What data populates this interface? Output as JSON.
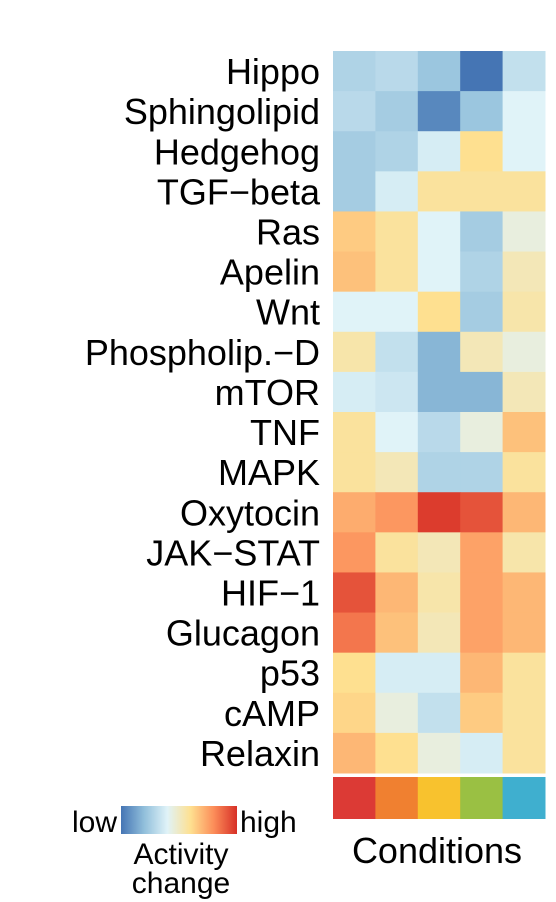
{
  "chart_data": {
    "type": "heatmap",
    "title": "",
    "rows": [
      "Hippo",
      "Sphingolipid",
      "Hedgehog",
      "TGF−beta",
      "Ras",
      "Apelin",
      "Wnt",
      "Phospholip.−D",
      "mTOR",
      "TNF",
      "MAPK",
      "Oxytocin",
      "JAK−STAT",
      "HIF−1",
      "Glucagon",
      "p53",
      "cAMP",
      "Relaxin"
    ],
    "columns_count": 5,
    "values": [
      [
        -0.45,
        -0.4,
        -0.55,
        -1.0,
        -0.35
      ],
      [
        -0.4,
        -0.5,
        -0.9,
        -0.55,
        -0.2
      ],
      [
        -0.5,
        -0.45,
        -0.25,
        0.2,
        -0.2
      ],
      [
        -0.5,
        -0.25,
        0.15,
        0.15,
        0.15
      ],
      [
        0.3,
        0.15,
        -0.2,
        -0.5,
        -0.1
      ],
      [
        0.35,
        0.15,
        -0.2,
        -0.45,
        0.05
      ],
      [
        -0.2,
        -0.2,
        0.2,
        -0.5,
        0.1
      ],
      [
        0.1,
        -0.35,
        -0.65,
        0.05,
        -0.1
      ],
      [
        -0.25,
        -0.3,
        -0.65,
        -0.65,
        0.05
      ],
      [
        0.15,
        -0.2,
        -0.4,
        -0.1,
        0.35
      ],
      [
        0.15,
        0.05,
        -0.45,
        -0.45,
        0.15
      ],
      [
        0.45,
        0.55,
        0.95,
        0.85,
        0.4
      ],
      [
        0.55,
        0.15,
        0.05,
        0.5,
        0.1
      ],
      [
        0.85,
        0.4,
        0.1,
        0.5,
        0.4
      ],
      [
        0.7,
        0.35,
        0.05,
        0.5,
        0.4
      ],
      [
        0.2,
        -0.25,
        -0.25,
        0.4,
        0.15
      ],
      [
        0.25,
        -0.1,
        -0.35,
        0.3,
        0.15
      ],
      [
        0.4,
        0.2,
        -0.1,
        -0.25,
        0.15
      ]
    ],
    "color_scale": {
      "low_label": "low",
      "high_label": "high",
      "title_line1": "Activity",
      "title_line2": "change",
      "stops": [
        "#4575b4",
        "#91bfdb",
        "#e0f3f8",
        "#fee090",
        "#fc8d59",
        "#d73027"
      ]
    },
    "condition_colors": [
      "#dc3a35",
      "#f08030",
      "#f8c22e",
      "#9ac043",
      "#3fafcf"
    ],
    "xlabel": "Conditions"
  }
}
